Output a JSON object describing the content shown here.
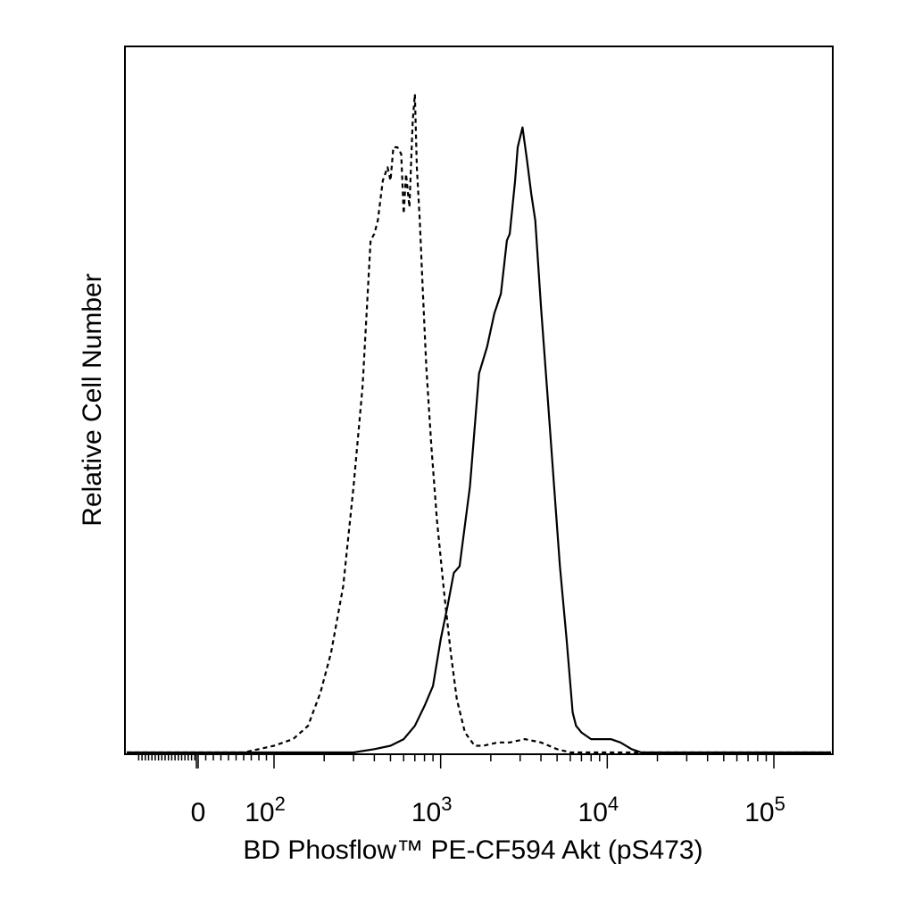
{
  "chart_data": {
    "type": "line",
    "title": "",
    "xlabel": "BD Phosflow™ PE-CF594 Akt (pS473)",
    "ylabel": "Relative Cell Number",
    "xscale": "biexponential",
    "xlim": [
      -200,
      200000
    ],
    "ylim": [
      0,
      100
    ],
    "grid": false,
    "legend": "none",
    "x_ticks": [
      {
        "value": 0,
        "base": "0",
        "exp": ""
      },
      {
        "value": 100,
        "base": "10",
        "exp": "2"
      },
      {
        "value": 1000,
        "base": "10",
        "exp": "3"
      },
      {
        "value": 10000,
        "base": "10",
        "exp": "4"
      },
      {
        "value": 100000,
        "base": "10",
        "exp": "5"
      }
    ],
    "series": [
      {
        "style": "dashed",
        "x": [
          60,
          80,
          100,
          130,
          160,
          190,
          220,
          260,
          300,
          340,
          380,
          400,
          420,
          450,
          480,
          500,
          520,
          550,
          580,
          600,
          620,
          650,
          680,
          700,
          720,
          750,
          780,
          820,
          880,
          950,
          1050,
          1150,
          1250,
          1400,
          1600,
          1800,
          2200,
          2600,
          3200,
          4000,
          5000,
          6000
        ],
        "y": [
          0,
          0.5,
          1,
          2,
          4,
          9,
          15,
          25,
          40,
          55,
          77,
          78,
          80,
          86,
          88,
          86,
          91,
          91,
          90,
          81,
          87,
          82,
          95,
          99,
          88,
          80,
          70,
          58,
          46,
          35,
          24,
          15,
          8,
          3,
          1,
          1,
          1.5,
          1.5,
          2,
          1.5,
          0.5,
          0
        ]
      },
      {
        "style": "solid",
        "x": [
          300,
          400,
          500,
          600,
          700,
          800,
          900,
          1000,
          1100,
          1200,
          1300,
          1500,
          1700,
          1900,
          2100,
          2300,
          2500,
          2600,
          2800,
          2900,
          3100,
          3300,
          3500,
          3700,
          4000,
          4400,
          4800,
          5200,
          5700,
          6200,
          6500,
          7000,
          8000,
          9000,
          10500,
          12000,
          14000,
          16000
        ],
        "y": [
          0,
          0.5,
          1,
          2,
          4,
          7,
          10,
          17,
          22,
          27,
          28,
          40,
          57,
          61,
          66,
          69,
          77,
          78,
          86,
          91,
          94,
          89,
          84,
          80,
          67,
          53,
          40,
          28,
          17,
          6,
          4,
          3,
          2,
          2,
          2,
          1.5,
          0.5,
          0
        ]
      }
    ]
  }
}
